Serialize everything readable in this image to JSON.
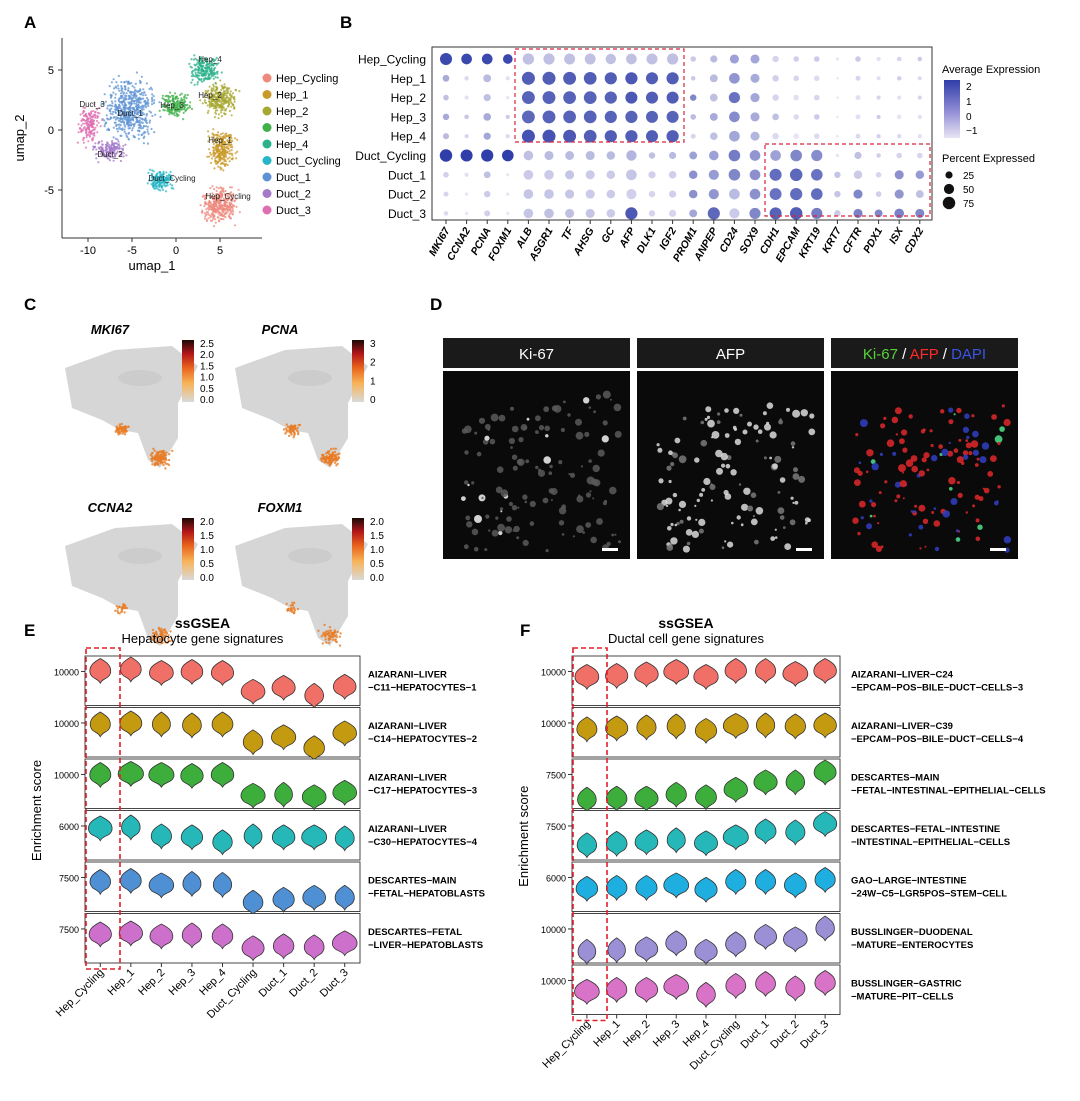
{
  "panel_letters": {
    "a": "A",
    "b": "B",
    "c": "C",
    "d": "D",
    "e": "E",
    "f": "F"
  },
  "cluster_colors": {
    "Hep_Cycling": "#ee8a7d",
    "Hep_1": "#c99a2a",
    "Hep_2": "#a7a832",
    "Hep_3": "#3fb04a",
    "Hep_4": "#2bb28b",
    "Duct_Cycling": "#27b6c7",
    "Duct_1": "#5d93d4",
    "Duct_2": "#a57ac9",
    "Duct_3": "#de6fb0"
  },
  "panelA": {
    "xlabel": "umap_1",
    "ylabel": "umap_2",
    "xticks": [
      "-10",
      "-5",
      "0",
      "5"
    ],
    "yticks": [
      "5",
      "0",
      "-5"
    ],
    "legend": [
      "Hep_Cycling",
      "Hep_1",
      "Hep_2",
      "Hep_3",
      "Hep_4",
      "Duct_Cycling",
      "Duct_1",
      "Duct_2",
      "Duct_3"
    ],
    "cluster_labels": [
      {
        "text": "Hep_4",
        "color": "Hep_4"
      },
      {
        "text": "Hep_2",
        "color": "Hep_2"
      },
      {
        "text": "Hep_3",
        "color": "Hep_3"
      },
      {
        "text": "Duct_3",
        "color": "Duct_3"
      },
      {
        "text": "Duct_1",
        "color": "Duct_1"
      },
      {
        "text": "Hep_1",
        "color": "Hep_1"
      },
      {
        "text": "Duct_2",
        "color": "Duct_2"
      },
      {
        "text": "Duct_Cycling",
        "color": "Duct_Cycling"
      },
      {
        "text": "Hep_Cycling",
        "color": "Hep_Cycling"
      }
    ]
  },
  "panelB": {
    "rows": [
      "Hep_Cycling",
      "Hep_1",
      "Hep_2",
      "Hep_3",
      "Hep_4",
      "Duct_Cycling",
      "Duct_1",
      "Duct_2",
      "Duct_3"
    ],
    "genes": [
      "MKI67",
      "CCNA2",
      "PCNA",
      "FOXM1",
      "ALB",
      "ASGR1",
      "TF",
      "AHSG",
      "GC",
      "AFP",
      "DLK1",
      "IGF2",
      "PROM1",
      "ANPEP",
      "CD24",
      "SOX9",
      "CDH1",
      "EPCAM",
      "KRT19",
      "KRT7",
      "CFTR",
      "PDX1",
      "ISX",
      "CDX2"
    ],
    "avg_expression": [
      [
        2.0,
        2.0,
        2.0,
        2.0,
        -0.3,
        -0.3,
        -0.3,
        -0.3,
        -0.3,
        -0.3,
        -0.3,
        -0.3,
        -0.5,
        -0.2,
        0.3,
        0.2,
        -0.7,
        -0.6,
        -0.5,
        -1.0,
        -0.5,
        -0.9,
        -0.7,
        -0.5
      ],
      [
        0.1,
        -0.8,
        -0.2,
        -0.9,
        1.6,
        1.6,
        1.6,
        1.6,
        1.6,
        1.7,
        1.6,
        1.6,
        -0.5,
        -0.2,
        0.5,
        0.1,
        -0.6,
        -0.7,
        -0.8,
        -1.0,
        -0.7,
        -0.9,
        -0.6,
        -0.8
      ],
      [
        -0.3,
        -0.9,
        -0.3,
        -1.0,
        1.5,
        1.5,
        1.5,
        1.5,
        1.5,
        1.7,
        1.6,
        1.6,
        0.8,
        -0.3,
        1.2,
        0.2,
        -0.7,
        -0.9,
        -0.7,
        -1.0,
        -0.9,
        -0.7,
        -0.9,
        -0.7
      ],
      [
        0.1,
        -0.4,
        0.1,
        -0.5,
        1.4,
        1.5,
        1.5,
        1.5,
        1.5,
        1.5,
        1.5,
        1.5,
        -0.2,
        0.1,
        0.7,
        0.1,
        -0.3,
        -0.8,
        -0.5,
        -1.0,
        -0.9,
        -0.5,
        -1.0,
        -0.9
      ],
      [
        -0.2,
        -0.7,
        0.2,
        -0.8,
        1.8,
        1.8,
        1.7,
        1.6,
        1.6,
        1.6,
        1.6,
        1.6,
        -0.7,
        -0.3,
        0.2,
        -0.1,
        -0.8,
        -1.0,
        -0.8,
        -1.0,
        -0.8,
        -0.6,
        -0.8,
        -0.9
      ],
      [
        2.2,
        2.2,
        2.2,
        2.3,
        -0.3,
        -0.2,
        -0.2,
        -0.2,
        -0.2,
        -0.1,
        -0.3,
        -0.2,
        0.3,
        0.3,
        1.0,
        0.5,
        0.3,
        0.8,
        0.7,
        -1.0,
        -0.3,
        -0.6,
        -0.7,
        -0.7
      ],
      [
        -0.6,
        -0.9,
        -0.3,
        -1.0,
        -0.5,
        -0.5,
        -0.4,
        -0.5,
        -0.5,
        -0.4,
        -0.6,
        -0.6,
        0.6,
        0.4,
        0.8,
        0.6,
        1.3,
        1.4,
        1.2,
        -0.4,
        -0.5,
        -0.7,
        0.6,
        0.4
      ],
      [
        -0.7,
        -1.0,
        -0.5,
        -1.0,
        -0.4,
        -0.4,
        -0.4,
        -0.5,
        -0.5,
        -0.6,
        -0.7,
        -0.6,
        0.6,
        0.5,
        -0.2,
        0.6,
        1.2,
        1.3,
        1.3,
        -0.4,
        0.8,
        -0.6,
        0.5,
        -0.3
      ],
      [
        -0.8,
        -1.0,
        -0.6,
        -1.0,
        -0.4,
        -0.3,
        -0.3,
        -0.4,
        -0.5,
        1.7,
        -0.7,
        -0.7,
        0.2,
        1.4,
        -0.5,
        0.8,
        1.5,
        1.6,
        1.0,
        -0.5,
        0.9,
        0.8,
        0.9,
        0.8
      ]
    ],
    "pct_expressed": [
      [
        70,
        55,
        55,
        45,
        62,
        60,
        58,
        58,
        52,
        55,
        58,
        60,
        15,
        25,
        40,
        40,
        20,
        15,
        15,
        5,
        15,
        8,
        10,
        10
      ],
      [
        22,
        10,
        30,
        8,
        82,
        82,
        80,
        78,
        72,
        72,
        70,
        72,
        10,
        30,
        55,
        40,
        20,
        15,
        15,
        3,
        12,
        8,
        10,
        8
      ],
      [
        15,
        8,
        25,
        5,
        80,
        80,
        78,
        78,
        72,
        70,
        70,
        70,
        20,
        30,
        60,
        40,
        20,
        15,
        15,
        3,
        12,
        8,
        8,
        8
      ],
      [
        20,
        10,
        28,
        8,
        80,
        80,
        78,
        78,
        72,
        72,
        70,
        70,
        15,
        30,
        55,
        40,
        22,
        15,
        15,
        3,
        12,
        8,
        10,
        8
      ],
      [
        18,
        8,
        25,
        8,
        82,
        82,
        80,
        78,
        72,
        72,
        70,
        72,
        12,
        28,
        55,
        40,
        20,
        15,
        15,
        3,
        12,
        8,
        10,
        8
      ],
      [
        75,
        70,
        72,
        65,
        45,
        40,
        38,
        40,
        35,
        52,
        20,
        25,
        30,
        45,
        65,
        55,
        55,
        65,
        60,
        5,
        25,
        10,
        15,
        15
      ],
      [
        15,
        8,
        22,
        5,
        45,
        45,
        40,
        40,
        35,
        55,
        25,
        28,
        35,
        50,
        65,
        55,
        70,
        75,
        65,
        20,
        35,
        15,
        40,
        35
      ],
      [
        12,
        5,
        20,
        5,
        45,
        45,
        40,
        40,
        35,
        50,
        20,
        25,
        35,
        50,
        55,
        55,
        68,
        72,
        65,
        20,
        40,
        15,
        40,
        30
      ],
      [
        10,
        5,
        18,
        5,
        45,
        45,
        40,
        40,
        35,
        72,
        20,
        25,
        30,
        72,
        50,
        60,
        70,
        75,
        60,
        20,
        40,
        30,
        45,
        40
      ]
    ],
    "legend_avg_title": "Average Expression",
    "legend_avg_ticks": [
      "2",
      "1",
      "0",
      "−1"
    ],
    "legend_pct_title": "Percent Expressed",
    "legend_pct_ticks": [
      "25",
      "50",
      "75"
    ]
  },
  "panelC": [
    {
      "gene": "MKI67",
      "ticks": [
        "2.5",
        "2.0",
        "1.5",
        "1.0",
        "0.5",
        "0.0"
      ]
    },
    {
      "gene": "PCNA",
      "ticks": [
        "3",
        "2",
        "1",
        "0"
      ]
    },
    {
      "gene": "CCNA2",
      "ticks": [
        "2.0",
        "1.5",
        "1.0",
        "0.5",
        "0.0"
      ]
    },
    {
      "gene": "FOXM1",
      "ticks": [
        "2.0",
        "1.5",
        "1.0",
        "0.5",
        "0.0"
      ]
    }
  ],
  "panelD": {
    "titles": [
      "Ki-67",
      "AFP"
    ],
    "merge": {
      "ki67": "Ki-67",
      "sep1": " / ",
      "afp": "AFP",
      "sep2": " / ",
      "dapi": "DAPI"
    },
    "merge_colors": {
      "ki67": "#58d23a",
      "afp": "#ff2a2a",
      "dapi": "#3a55e6",
      "sep": "#ffffff"
    }
  },
  "panelE": {
    "title": "ssGSEA",
    "subtitle": "Hepatocyte gene signatures",
    "ylabel": "Enrichment score",
    "groups": [
      "Hep_Cycling",
      "Hep_1",
      "Hep_2",
      "Hep_3",
      "Hep_4",
      "Duct_Cycling",
      "Duct_1",
      "Duct_2",
      "Duct_3"
    ],
    "rows": [
      {
        "label1": "AIZARANI−LIVER",
        "label2": "−C11−HEPATOCYTES−1",
        "tick": "10000",
        "color": "#f07068",
        "levels": [
          0.72,
          0.75,
          0.68,
          0.7,
          0.68,
          0.3,
          0.38,
          0.22,
          0.4
        ]
      },
      {
        "label1": "AIZARANI−LIVER",
        "label2": "−C14−HEPATOCYTES−2",
        "tick": "10000",
        "color": "#c49a10",
        "levels": [
          0.68,
          0.7,
          0.68,
          0.66,
          0.68,
          0.32,
          0.42,
          0.2,
          0.5
        ]
      },
      {
        "label1": "AIZARANI−LIVER",
        "label2": "−C17−HEPATOCYTES−3",
        "tick": "10000",
        "color": "#3dae3b",
        "levels": [
          0.7,
          0.72,
          0.7,
          0.68,
          0.7,
          0.28,
          0.3,
          0.25,
          0.34
        ]
      },
      {
        "label1": "AIZARANI−LIVER",
        "label2": "−C30−HEPATOCYTES−4",
        "tick": "6000",
        "color": "#26b8b8",
        "levels": [
          0.66,
          0.68,
          0.5,
          0.48,
          0.38,
          0.5,
          0.48,
          0.48,
          0.46
        ]
      },
      {
        "label1": "DESCARTES−MAIN",
        "label2": "−FETAL−HEPATOBLASTS",
        "tick": "7500",
        "color": "#4f8fd4",
        "levels": [
          0.62,
          0.64,
          0.55,
          0.58,
          0.56,
          0.2,
          0.26,
          0.3,
          0.3
        ]
      },
      {
        "label1": "DESCARTES−FETAL",
        "label2": "−LIVER−HEPATOBLASTS",
        "tick": "7500",
        "color": "#cc70cc",
        "levels": [
          0.6,
          0.62,
          0.56,
          0.58,
          0.56,
          0.32,
          0.36,
          0.34,
          0.42
        ]
      }
    ]
  },
  "panelF": {
    "title": "ssGSEA",
    "subtitle": "Ductal cell gene signatures",
    "ylabel": "Enrichment score",
    "groups": [
      "Hep_Cycling",
      "Hep_1",
      "Hep_2",
      "Hep_3",
      "Hep_4",
      "Duct_Cycling",
      "Duct_1",
      "Duct_2",
      "Duct_3"
    ],
    "rows": [
      {
        "label1": "AIZARANI−LIVER−C24",
        "label2": "−EPCAM−POS−BILE−DUCT−CELLS−3",
        "tick": "10000",
        "color": "#f07068",
        "levels": [
          0.6,
          0.62,
          0.65,
          0.7,
          0.6,
          0.72,
          0.72,
          0.66,
          0.72
        ]
      },
      {
        "label1": "AIZARANI−LIVER−C39",
        "label2": "−EPCAM−POS−BILE−DUCT−CELLS−4",
        "tick": "10000",
        "color": "#c49a10",
        "levels": [
          0.58,
          0.6,
          0.62,
          0.64,
          0.55,
          0.65,
          0.66,
          0.64,
          0.66
        ]
      },
      {
        "label1": "DESCARTES−MAIN",
        "label2": "−FETAL−INTESTINAL−EPITHELIAL−CELLS",
        "tick": "7500",
        "color": "#3dae3b",
        "levels": [
          0.2,
          0.22,
          0.22,
          0.3,
          0.25,
          0.4,
          0.55,
          0.55,
          0.75
        ]
      },
      {
        "label1": "DESCARTES−FETAL−INTESTINE",
        "label2": "−INTESTINAL−EPITHELIAL−CELLS",
        "tick": "7500",
        "color": "#26b8b8",
        "levels": [
          0.32,
          0.35,
          0.38,
          0.42,
          0.36,
          0.48,
          0.6,
          0.58,
          0.75
        ]
      },
      {
        "label1": "GAO−LARGE−INTESTINE",
        "label2": "−24W−C5−LGR5POS−STEM−CELL",
        "tick": "6000",
        "color": "#1faee0",
        "levels": [
          0.48,
          0.5,
          0.5,
          0.55,
          0.46,
          0.62,
          0.62,
          0.55,
          0.66
        ]
      },
      {
        "label1": "BUSSLINGER−DUODENAL",
        "label2": "−MATURE−ENTEROCYTES",
        "tick": "10000",
        "color": "#9b8fd6",
        "levels": [
          0.25,
          0.28,
          0.3,
          0.42,
          0.25,
          0.4,
          0.55,
          0.5,
          0.72
        ]
      },
      {
        "label1": "BUSSLINGER−GASTRIC",
        "label2": "−MATURE−PIT−CELLS",
        "tick": "10000",
        "color": "#d873c8",
        "levels": [
          0.48,
          0.52,
          0.52,
          0.58,
          0.42,
          0.6,
          0.64,
          0.55,
          0.66
        ]
      }
    ]
  }
}
